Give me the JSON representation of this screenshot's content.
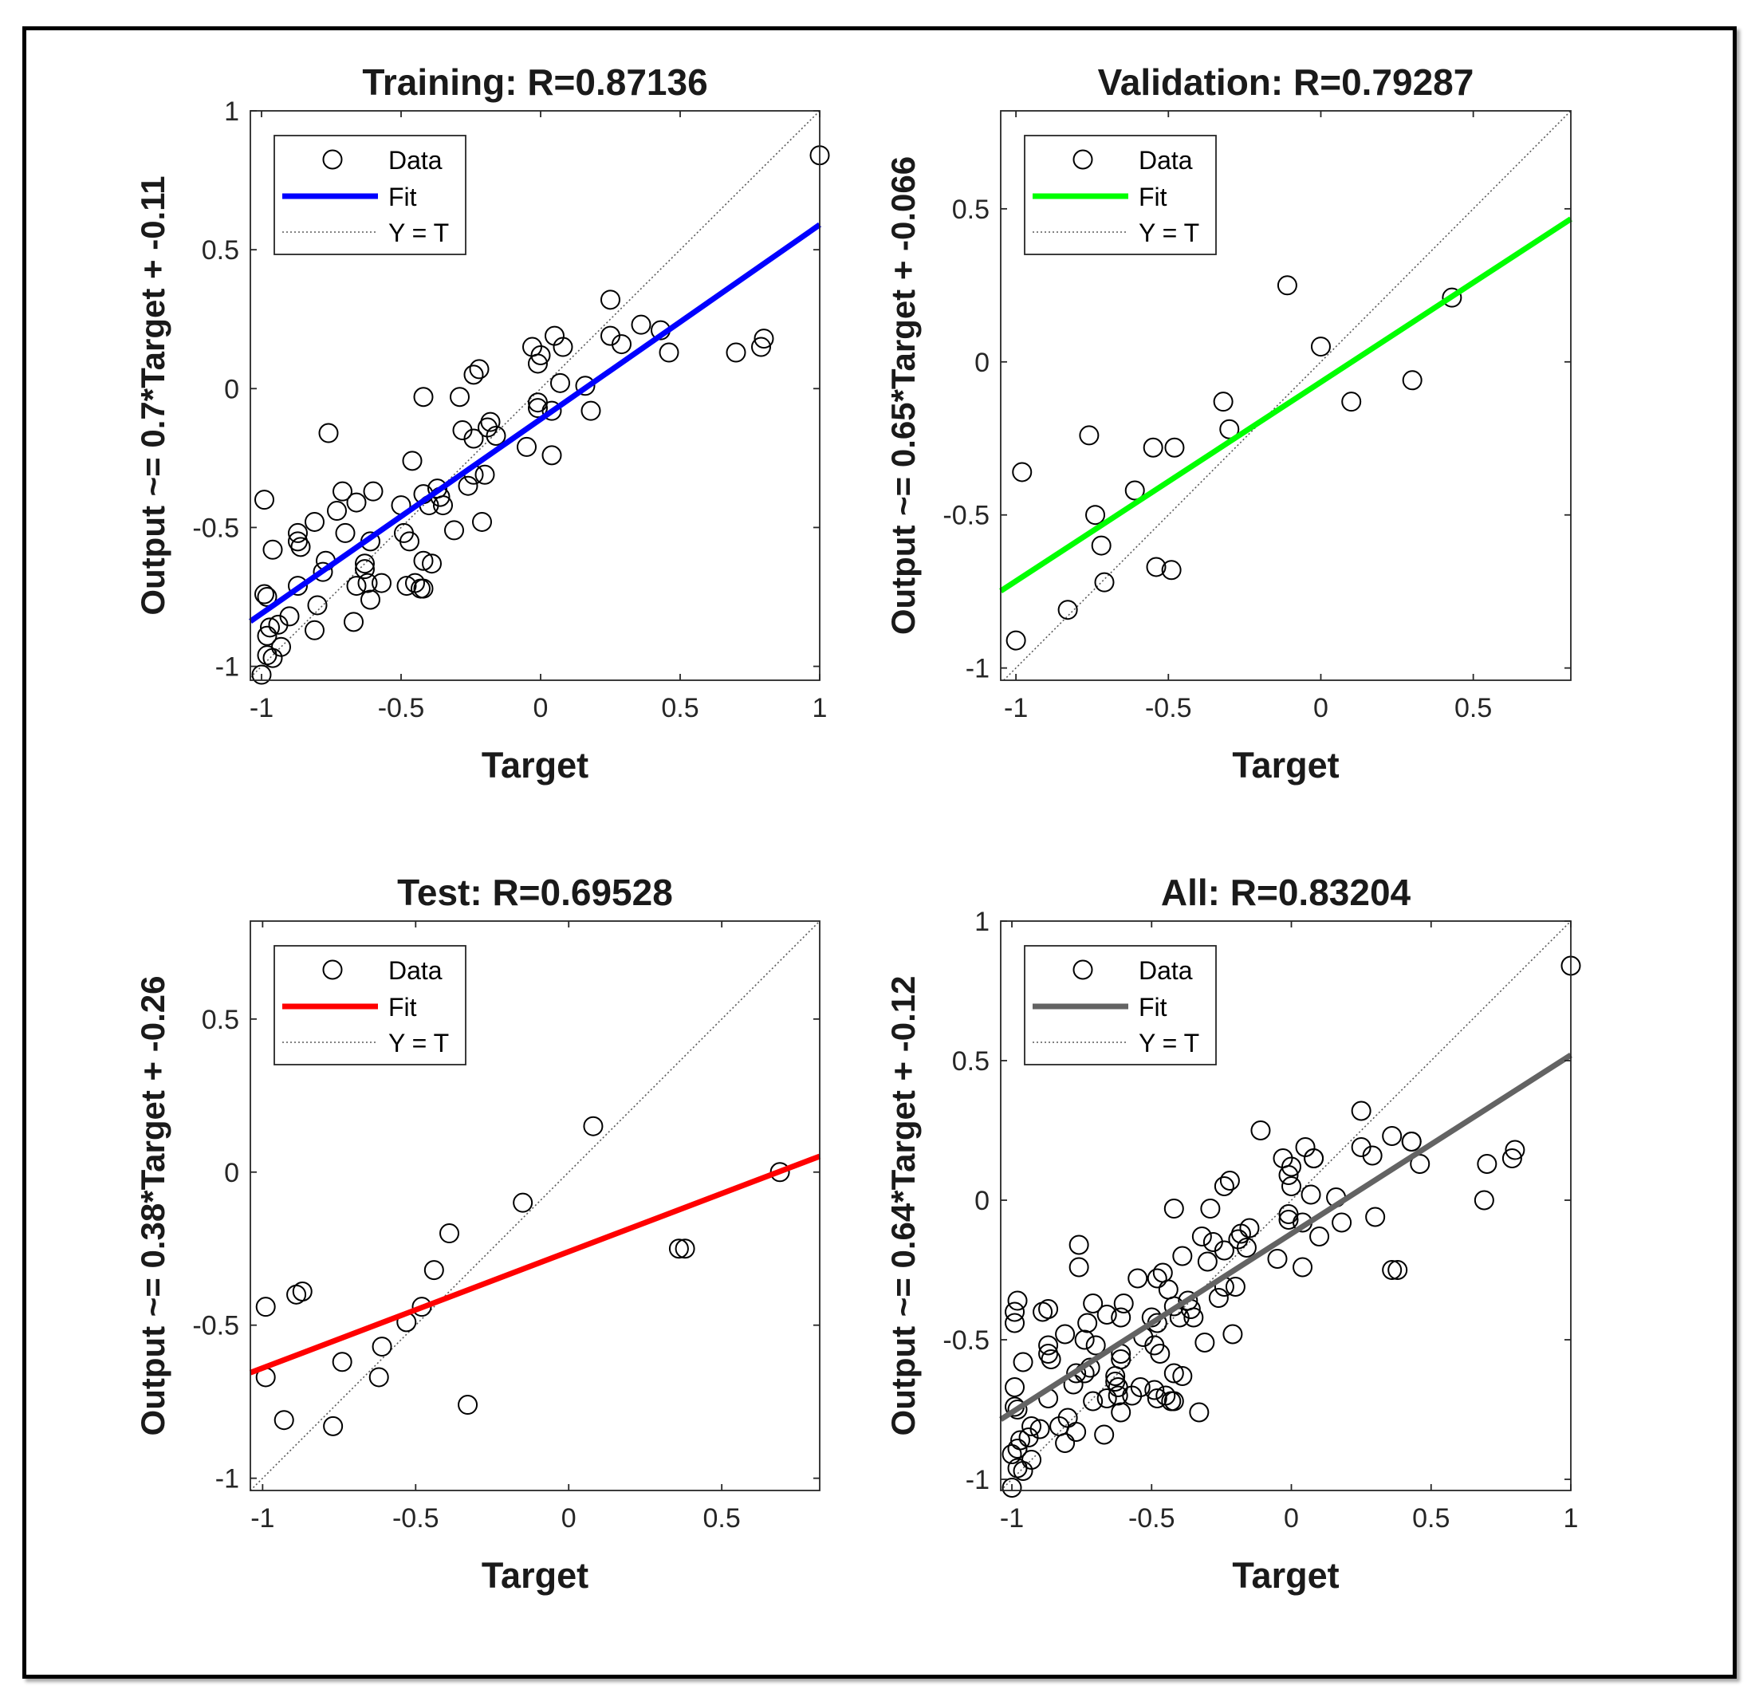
{
  "chart_data": [
    {
      "id": "training",
      "type": "scatter",
      "title": "Training: R=0.87136",
      "xlabel": "Target",
      "ylabel": "Output ~= 0.7*Target + -0.11",
      "xlim": [
        -1.04,
        1.0
      ],
      "ylim": [
        -1.05,
        1.0
      ],
      "xticks": [
        -1,
        -0.5,
        0,
        0.5,
        1
      ],
      "xtick_labels": [
        "-1",
        "-0.5",
        "0",
        "0.5",
        "1"
      ],
      "yticks": [
        -1,
        -0.5,
        0,
        0.5,
        1
      ],
      "ytick_labels": [
        "-1",
        "-0.5",
        "0",
        "0.5",
        "1"
      ],
      "fit": {
        "slope": 0.7,
        "intercept": -0.11,
        "color": "#0000ff"
      },
      "legend": {
        "data": "Data",
        "fit": "Fit",
        "identity": "Y = T",
        "position": "top-left"
      },
      "points": [
        [
          1.0,
          0.84
        ],
        [
          0.7,
          0.13
        ],
        [
          0.8,
          0.18
        ],
        [
          0.79,
          0.15
        ],
        [
          0.43,
          0.21
        ],
        [
          0.46,
          0.13
        ],
        [
          0.36,
          0.23
        ],
        [
          0.25,
          0.32
        ],
        [
          0.25,
          0.19
        ],
        [
          0.29,
          0.16
        ],
        [
          0.05,
          0.19
        ],
        [
          0.08,
          0.15
        ],
        [
          -0.03,
          0.15
        ],
        [
          0.0,
          0.12
        ],
        [
          -0.01,
          0.09
        ],
        [
          0.07,
          0.02
        ],
        [
          0.16,
          0.01
        ],
        [
          0.18,
          -0.08
        ],
        [
          0.04,
          -0.08
        ],
        [
          -0.01,
          -0.05
        ],
        [
          -0.01,
          -0.07
        ],
        [
          0.04,
          -0.24
        ],
        [
          -0.05,
          -0.21
        ],
        [
          -0.24,
          0.05
        ],
        [
          -0.22,
          0.07
        ],
        [
          -0.29,
          -0.03
        ],
        [
          -0.42,
          -0.03
        ],
        [
          -0.18,
          -0.12
        ],
        [
          -0.19,
          -0.14
        ],
        [
          -0.28,
          -0.15
        ],
        [
          -0.24,
          -0.18
        ],
        [
          -0.16,
          -0.17
        ],
        [
          -0.46,
          -0.26
        ],
        [
          -0.24,
          -0.31
        ],
        [
          -0.2,
          -0.31
        ],
        [
          -0.26,
          -0.35
        ],
        [
          -0.37,
          -0.36
        ],
        [
          -0.36,
          -0.39
        ],
        [
          -0.42,
          -0.38
        ],
        [
          -0.4,
          -0.42
        ],
        [
          -0.35,
          -0.42
        ],
        [
          -0.5,
          -0.42
        ],
        [
          -0.21,
          -0.48
        ],
        [
          -0.31,
          -0.51
        ],
        [
          -0.49,
          -0.52
        ],
        [
          -0.47,
          -0.55
        ],
        [
          -0.61,
          -0.55
        ],
        [
          -0.73,
          -0.44
        ],
        [
          -0.6,
          -0.37
        ],
        [
          -0.71,
          -0.37
        ],
        [
          -0.66,
          -0.41
        ],
        [
          -0.7,
          -0.52
        ],
        [
          -0.81,
          -0.48
        ],
        [
          -0.77,
          -0.62
        ],
        [
          -0.63,
          -0.63
        ],
        [
          -0.42,
          -0.62
        ],
        [
          -0.39,
          -0.63
        ],
        [
          -0.63,
          -0.65
        ],
        [
          -0.62,
          -0.7
        ],
        [
          -0.57,
          -0.7
        ],
        [
          -0.66,
          -0.71
        ],
        [
          -0.48,
          -0.71
        ],
        [
          -0.45,
          -0.7
        ],
        [
          -0.42,
          -0.72
        ],
        [
          -0.43,
          -0.72
        ],
        [
          -0.61,
          -0.76
        ],
        [
          -0.67,
          -0.84
        ],
        [
          -0.76,
          -0.16
        ],
        [
          -0.99,
          -0.4
        ],
        [
          -0.96,
          -0.58
        ],
        [
          -0.87,
          -0.52
        ],
        [
          -0.87,
          -0.55
        ],
        [
          -0.86,
          -0.57
        ],
        [
          -0.78,
          -0.66
        ],
        [
          -0.87,
          -0.71
        ],
        [
          -0.8,
          -0.78
        ],
        [
          -0.99,
          -0.74
        ],
        [
          -0.98,
          -0.75
        ],
        [
          -0.9,
          -0.82
        ],
        [
          -0.97,
          -0.86
        ],
        [
          -0.94,
          -0.85
        ],
        [
          -0.98,
          -0.89
        ],
        [
          -0.81,
          -0.87
        ],
        [
          -0.93,
          -0.93
        ],
        [
          -0.98,
          -0.96
        ],
        [
          -0.96,
          -0.97
        ],
        [
          -1.0,
          -1.03
        ]
      ]
    },
    {
      "id": "validation",
      "type": "scatter",
      "title": "Validation: R=0.79287",
      "xlabel": "Target",
      "ylabel": "Output ~= 0.65*Target + -0.066",
      "xlim": [
        -1.05,
        0.82
      ],
      "ylim": [
        -1.04,
        0.82
      ],
      "xticks": [
        -1,
        -0.5,
        0,
        0.5
      ],
      "xtick_labels": [
        "-1",
        "-0.5",
        "0",
        "0.5"
      ],
      "yticks": [
        -1,
        -0.5,
        0,
        0.5
      ],
      "ytick_labels": [
        "-1",
        "-0.5",
        "0",
        "0.5"
      ],
      "fit": {
        "slope": 0.65,
        "intercept": -0.066,
        "color": "#00ff00"
      },
      "legend": {
        "data": "Data",
        "fit": "Fit",
        "identity": "Y = T",
        "position": "top-left"
      },
      "points": [
        [
          -0.11,
          0.25
        ],
        [
          0.0,
          0.05
        ],
        [
          0.43,
          0.21
        ],
        [
          0.3,
          -0.06
        ],
        [
          0.1,
          -0.13
        ],
        [
          -0.32,
          -0.13
        ],
        [
          -0.3,
          -0.22
        ],
        [
          -0.76,
          -0.24
        ],
        [
          -0.55,
          -0.28
        ],
        [
          -0.48,
          -0.28
        ],
        [
          -0.98,
          -0.36
        ],
        [
          -0.61,
          -0.42
        ],
        [
          -0.74,
          -0.5
        ],
        [
          -0.72,
          -0.6
        ],
        [
          -0.54,
          -0.67
        ],
        [
          -0.49,
          -0.68
        ],
        [
          -0.71,
          -0.72
        ],
        [
          -0.83,
          -0.81
        ],
        [
          -1.0,
          -0.91
        ]
      ]
    },
    {
      "id": "test",
      "type": "scatter",
      "title": "Test: R=0.69528",
      "xlabel": "Target",
      "ylabel": "Output ~= 0.38*Target + -0.26",
      "xlim": [
        -1.04,
        0.82
      ],
      "ylim": [
        -1.04,
        0.82
      ],
      "xticks": [
        -1,
        -0.5,
        0,
        0.5
      ],
      "xtick_labels": [
        "-1",
        "-0.5",
        "0",
        "0.5"
      ],
      "yticks": [
        -1,
        -0.5,
        0,
        0.5
      ],
      "ytick_labels": [
        "-1",
        "-0.5",
        "0",
        "0.5"
      ],
      "fit": {
        "slope": 0.38,
        "intercept": -0.26,
        "color": "#ff0000"
      },
      "legend": {
        "data": "Data",
        "fit": "Fit",
        "identity": "Y = T",
        "position": "top-left"
      },
      "points": [
        [
          0.08,
          0.15
        ],
        [
          0.69,
          0.0
        ],
        [
          -0.15,
          -0.1
        ],
        [
          0.36,
          -0.25
        ],
        [
          0.38,
          -0.25
        ],
        [
          -0.39,
          -0.2
        ],
        [
          -0.44,
          -0.32
        ],
        [
          -0.99,
          -0.44
        ],
        [
          -0.87,
          -0.39
        ],
        [
          -0.89,
          -0.4
        ],
        [
          -0.48,
          -0.44
        ],
        [
          -0.53,
          -0.49
        ],
        [
          -0.61,
          -0.57
        ],
        [
          -0.74,
          -0.62
        ],
        [
          -0.99,
          -0.67
        ],
        [
          -0.62,
          -0.67
        ],
        [
          -0.33,
          -0.76
        ],
        [
          -0.93,
          -0.81
        ],
        [
          -0.77,
          -0.83
        ]
      ]
    },
    {
      "id": "all",
      "type": "scatter",
      "title": "All: R=0.83204",
      "xlabel": "Target",
      "ylabel": "Output ~= 0.64*Target + -0.12",
      "xlim": [
        -1.04,
        1.0
      ],
      "ylim": [
        -1.04,
        1.0
      ],
      "xticks": [
        -1,
        -0.5,
        0,
        0.5,
        1
      ],
      "xtick_labels": [
        "-1",
        "-0.5",
        "0",
        "0.5",
        "1"
      ],
      "yticks": [
        -1,
        -0.5,
        0,
        0.5,
        1
      ],
      "ytick_labels": [
        "-1",
        "-0.5",
        "0",
        "0.5",
        "1"
      ],
      "fit": {
        "slope": 0.64,
        "intercept": -0.12,
        "color": "#636363"
      },
      "legend": {
        "data": "Data",
        "fit": "Fit",
        "identity": "Y = T",
        "position": "top-left"
      },
      "points": [
        [
          1.0,
          0.84
        ],
        [
          0.7,
          0.13
        ],
        [
          0.8,
          0.18
        ],
        [
          0.79,
          0.15
        ],
        [
          0.43,
          0.21
        ],
        [
          0.46,
          0.13
        ],
        [
          0.36,
          0.23
        ],
        [
          0.25,
          0.32
        ],
        [
          0.25,
          0.19
        ],
        [
          0.29,
          0.16
        ],
        [
          0.05,
          0.19
        ],
        [
          0.08,
          0.15
        ],
        [
          -0.03,
          0.15
        ],
        [
          0.0,
          0.12
        ],
        [
          -0.01,
          0.09
        ],
        [
          0.07,
          0.02
        ],
        [
          0.16,
          0.01
        ],
        [
          0.18,
          -0.08
        ],
        [
          0.04,
          -0.08
        ],
        [
          -0.01,
          -0.05
        ],
        [
          -0.01,
          -0.07
        ],
        [
          0.04,
          -0.24
        ],
        [
          -0.05,
          -0.21
        ],
        [
          -0.24,
          0.05
        ],
        [
          -0.22,
          0.07
        ],
        [
          -0.29,
          -0.03
        ],
        [
          -0.42,
          -0.03
        ],
        [
          -0.18,
          -0.12
        ],
        [
          -0.19,
          -0.14
        ],
        [
          -0.28,
          -0.15
        ],
        [
          -0.24,
          -0.18
        ],
        [
          -0.16,
          -0.17
        ],
        [
          -0.46,
          -0.26
        ],
        [
          -0.24,
          -0.31
        ],
        [
          -0.2,
          -0.31
        ],
        [
          -0.26,
          -0.35
        ],
        [
          -0.37,
          -0.36
        ],
        [
          -0.36,
          -0.39
        ],
        [
          -0.42,
          -0.38
        ],
        [
          -0.4,
          -0.42
        ],
        [
          -0.35,
          -0.42
        ],
        [
          -0.5,
          -0.42
        ],
        [
          -0.21,
          -0.48
        ],
        [
          -0.31,
          -0.51
        ],
        [
          -0.49,
          -0.52
        ],
        [
          -0.47,
          -0.55
        ],
        [
          -0.61,
          -0.55
        ],
        [
          -0.73,
          -0.44
        ],
        [
          -0.6,
          -0.37
        ],
        [
          -0.71,
          -0.37
        ],
        [
          -0.66,
          -0.41
        ],
        [
          -0.7,
          -0.52
        ],
        [
          -0.81,
          -0.48
        ],
        [
          -0.77,
          -0.62
        ],
        [
          -0.63,
          -0.63
        ],
        [
          -0.42,
          -0.62
        ],
        [
          -0.39,
          -0.63
        ],
        [
          -0.63,
          -0.65
        ],
        [
          -0.62,
          -0.7
        ],
        [
          -0.57,
          -0.7
        ],
        [
          -0.66,
          -0.71
        ],
        [
          -0.48,
          -0.71
        ],
        [
          -0.45,
          -0.7
        ],
        [
          -0.42,
          -0.72
        ],
        [
          -0.43,
          -0.72
        ],
        [
          -0.61,
          -0.76
        ],
        [
          -0.67,
          -0.84
        ],
        [
          -0.76,
          -0.16
        ],
        [
          -0.99,
          -0.4
        ],
        [
          -0.96,
          -0.58
        ],
        [
          -0.87,
          -0.52
        ],
        [
          -0.87,
          -0.55
        ],
        [
          -0.86,
          -0.57
        ],
        [
          -0.78,
          -0.66
        ],
        [
          -0.87,
          -0.71
        ],
        [
          -0.8,
          -0.78
        ],
        [
          -0.99,
          -0.74
        ],
        [
          -0.98,
          -0.75
        ],
        [
          -0.9,
          -0.82
        ],
        [
          -0.97,
          -0.86
        ],
        [
          -0.94,
          -0.85
        ],
        [
          -0.98,
          -0.89
        ],
        [
          -0.81,
          -0.87
        ],
        [
          -0.93,
          -0.93
        ],
        [
          -0.98,
          -0.96
        ],
        [
          -0.96,
          -0.97
        ],
        [
          -1.0,
          -1.03
        ],
        [
          -0.11,
          0.25
        ],
        [
          0.0,
          0.05
        ],
        [
          0.43,
          0.21
        ],
        [
          0.3,
          -0.06
        ],
        [
          0.1,
          -0.13
        ],
        [
          -0.32,
          -0.13
        ],
        [
          -0.3,
          -0.22
        ],
        [
          -0.76,
          -0.24
        ],
        [
          -0.55,
          -0.28
        ],
        [
          -0.48,
          -0.28
        ],
        [
          -0.98,
          -0.36
        ],
        [
          -0.61,
          -0.42
        ],
        [
          -0.74,
          -0.5
        ],
        [
          -0.72,
          -0.6
        ],
        [
          -0.54,
          -0.67
        ],
        [
          -0.49,
          -0.68
        ],
        [
          -0.71,
          -0.72
        ],
        [
          -0.83,
          -0.81
        ],
        [
          -1.0,
          -0.91
        ],
        [
          0.08,
          0.15
        ],
        [
          0.69,
          0.0
        ],
        [
          -0.15,
          -0.1
        ],
        [
          0.36,
          -0.25
        ],
        [
          0.38,
          -0.25
        ],
        [
          -0.39,
          -0.2
        ],
        [
          -0.44,
          -0.32
        ],
        [
          -0.99,
          -0.44
        ],
        [
          -0.87,
          -0.39
        ],
        [
          -0.89,
          -0.4
        ],
        [
          -0.48,
          -0.44
        ],
        [
          -0.53,
          -0.49
        ],
        [
          -0.61,
          -0.57
        ],
        [
          -0.74,
          -0.62
        ],
        [
          -0.99,
          -0.67
        ],
        [
          -0.62,
          -0.67
        ],
        [
          -0.33,
          -0.76
        ],
        [
          -0.93,
          -0.81
        ],
        [
          -0.77,
          -0.83
        ]
      ]
    }
  ]
}
